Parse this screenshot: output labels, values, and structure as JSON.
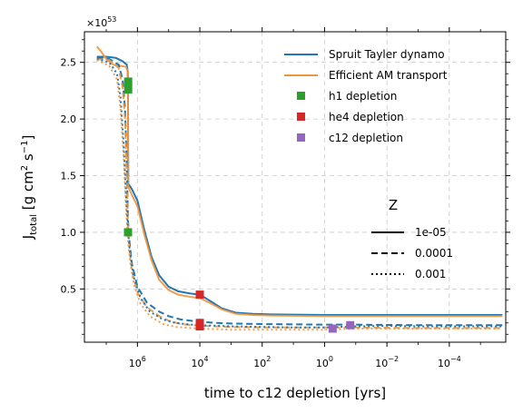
{
  "chart_data": {
    "type": "line",
    "xlabel": "time to c12 depletion [yrs]",
    "ylabel": "J_total [g cm^2 s^-1]",
    "ylabel_main": "J",
    "ylabel_sub": "total",
    "ylabel_unit_a": " [g cm",
    "ylabel_unit_b": "2",
    "ylabel_unit_c": " s",
    "ylabel_unit_d": "−1",
    "ylabel_unit_e": "]",
    "offset_text_base": "×10",
    "offset_text_exp": "53",
    "x_scale": "log, reversed",
    "xlim": [
      50000000,
      1.55e-06
    ],
    "ylim": [
      0.03,
      2.77
    ],
    "x_tick_values": [
      1000000,
      10000,
      100,
      1,
      0.01,
      0.0001
    ],
    "x_ticks": [
      {
        "base": "10",
        "exp": "6"
      },
      {
        "base": "10",
        "exp": "4"
      },
      {
        "base": "10",
        "exp": "2"
      },
      {
        "base": "10",
        "exp": "0"
      },
      {
        "base": "10",
        "exp": "−2"
      },
      {
        "base": "10",
        "exp": "−4"
      }
    ],
    "y_ticks": [
      "0.5",
      "1.0",
      "1.5",
      "2.0",
      "2.5"
    ],
    "y_tick_values": [
      0.5,
      1.0,
      1.5,
      2.0,
      2.5
    ],
    "grid": true,
    "legend_position": "top-right",
    "colors": {
      "spruit": "#1f77b4",
      "efficient": "#f0953c",
      "h1": "#2ca02c",
      "he4": "#d62728",
      "c12": "#9467bd"
    },
    "legend": {
      "series": [
        "Spruit Tayler dynamo",
        "Efficient AM transport"
      ],
      "markers": [
        "h1 depletion",
        "he4 depletion",
        "c12 depletion"
      ],
      "z_title": "Z",
      "z_entries": [
        "1e-05",
        "0.0001",
        "0.001"
      ]
    },
    "series": [
      {
        "name": "Spruit Tayler dynamo",
        "z": "1e-05",
        "style": "solid",
        "color": "#1f77b4",
        "x": [
          20000000,
          10000000,
          5000000,
          3000000,
          2200000,
          2050000,
          2010000,
          1990000,
          1960000,
          1500000,
          1000000,
          600000,
          350000,
          200000,
          100000,
          50000,
          20000,
          10000,
          5000,
          2000,
          700,
          200,
          50,
          1,
          0.01,
          2e-06
        ],
        "y": [
          2.55,
          2.55,
          2.54,
          2.51,
          2.48,
          2.42,
          2.3,
          1.7,
          1.43,
          1.38,
          1.28,
          1.02,
          0.78,
          0.62,
          0.52,
          0.48,
          0.46,
          0.45,
          0.4,
          0.33,
          0.29,
          0.28,
          0.275,
          0.27,
          0.27,
          0.27
        ]
      },
      {
        "name": "Efficient AM transport",
        "z": "1e-05",
        "style": "solid",
        "color": "#f0953c",
        "x": [
          20000000,
          15000000,
          10000000,
          6000000,
          3500000,
          2300000,
          2050000,
          2010000,
          1990000,
          1960000,
          1500000,
          1000000,
          600000,
          350000,
          200000,
          100000,
          50000,
          20000,
          10000,
          5000,
          2000,
          700,
          200,
          50,
          1,
          0.01,
          2e-06
        ],
        "y": [
          2.64,
          2.6,
          2.53,
          2.48,
          2.47,
          2.46,
          2.42,
          2.3,
          1.7,
          1.4,
          1.33,
          1.23,
          0.98,
          0.75,
          0.58,
          0.49,
          0.45,
          0.43,
          0.42,
          0.38,
          0.32,
          0.28,
          0.27,
          0.265,
          0.26,
          0.26,
          0.26
        ]
      },
      {
        "name": "Spruit Tayler dynamo",
        "z": "0.0001",
        "style": "dashed",
        "color": "#1f77b4",
        "x": [
          20000000,
          8000000,
          4000000,
          3000000,
          2500000,
          2200000,
          2000000,
          1800000,
          1500000,
          1000000,
          500000,
          200000,
          100000,
          40000,
          10000,
          3000,
          1000,
          100,
          1,
          0.1,
          0.001,
          2e-06
        ],
        "y": [
          2.54,
          2.53,
          2.48,
          2.35,
          2.1,
          1.6,
          1.1,
          0.92,
          0.72,
          0.52,
          0.38,
          0.3,
          0.26,
          0.23,
          0.21,
          0.2,
          0.195,
          0.19,
          0.185,
          0.185,
          0.18,
          0.18
        ]
      },
      {
        "name": "Efficient AM transport",
        "z": "0.0001",
        "style": "dashed",
        "color": "#f0953c",
        "x": [
          20000000,
          8000000,
          4000000,
          3000000,
          2500000,
          2200000,
          2000000,
          1800000,
          1500000,
          1000000,
          500000,
          200000,
          100000,
          40000,
          10000,
          3000,
          1000,
          100,
          1,
          0.1,
          0.001,
          2e-06
        ],
        "y": [
          2.53,
          2.52,
          2.45,
          2.28,
          2.0,
          1.5,
          1.05,
          0.86,
          0.66,
          0.47,
          0.34,
          0.26,
          0.22,
          0.19,
          0.175,
          0.17,
          0.165,
          0.16,
          0.16,
          0.16,
          0.155,
          0.155
        ]
      },
      {
        "name": "Spruit Tayler dynamo",
        "z": "0.001",
        "style": "dotted",
        "color": "#1f77b4",
        "x": [
          20000000,
          8000000,
          4500000,
          3500000,
          2800000,
          2300000,
          2000000,
          1700000,
          1300000,
          800000,
          400000,
          150000,
          60000,
          20000,
          10000,
          3000,
          1000,
          100,
          10,
          1,
          0.1,
          0.01,
          0.001,
          2e-06
        ],
        "y": [
          2.53,
          2.5,
          2.4,
          2.2,
          1.8,
          1.3,
          1.0,
          0.8,
          0.6,
          0.42,
          0.3,
          0.23,
          0.2,
          0.185,
          0.18,
          0.175,
          0.17,
          0.165,
          0.16,
          0.16,
          0.17,
          0.175,
          0.17,
          0.17
        ]
      },
      {
        "name": "Efficient AM transport",
        "z": "0.001",
        "style": "dotted",
        "color": "#f0953c",
        "x": [
          20000000,
          8000000,
          4500000,
          3500000,
          2800000,
          2300000,
          2000000,
          1700000,
          1300000,
          800000,
          400000,
          150000,
          60000,
          20000,
          10000,
          3000,
          1000,
          100,
          10,
          1,
          0.1,
          0.01,
          0.001,
          2e-06
        ],
        "y": [
          2.52,
          2.47,
          2.35,
          2.1,
          1.7,
          1.2,
          0.93,
          0.73,
          0.54,
          0.37,
          0.26,
          0.19,
          0.165,
          0.155,
          0.15,
          0.145,
          0.14,
          0.14,
          0.14,
          0.14,
          0.15,
          0.15,
          0.15,
          0.15
        ]
      }
    ],
    "markers": [
      {
        "type": "h1 depletion",
        "x": 1980000,
        "y": 2.33
      },
      {
        "type": "h1 depletion",
        "x": 1980000,
        "y": 2.26
      },
      {
        "type": "h1 depletion",
        "x": 2000000,
        "y": 1.0
      },
      {
        "type": "he4 depletion",
        "x": 10000,
        "y": 0.45
      },
      {
        "type": "he4 depletion",
        "x": 10000,
        "y": 0.2
      },
      {
        "type": "he4 depletion",
        "x": 10000,
        "y": 0.17
      },
      {
        "type": "c12 depletion",
        "x": 0.55,
        "y": 0.15
      },
      {
        "type": "c12 depletion",
        "x": 0.15,
        "y": 0.18
      }
    ]
  }
}
